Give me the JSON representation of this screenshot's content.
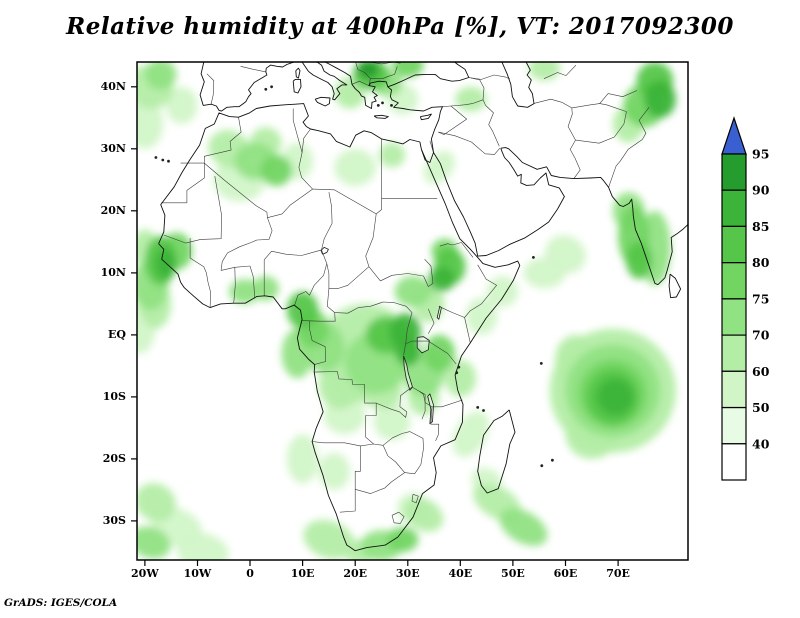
{
  "title": "Relative humidity at 400hPa [%], VT: 2017092300",
  "attribution": "GrADS: IGES/COLA",
  "chart_data": {
    "type": "heatmap",
    "variable": "Relative humidity",
    "pressure_level": "400hPa",
    "units": "%",
    "valid_time": "2017092300",
    "map_extent": {
      "lon_min": -21.5,
      "lon_max": 83.3,
      "lat_min": -36.3,
      "lat_max": 44
    },
    "lat_ticks": [
      {
        "label": "40N",
        "value": 40
      },
      {
        "label": "30N",
        "value": 30
      },
      {
        "label": "20N",
        "value": 20
      },
      {
        "label": "10N",
        "value": 10
      },
      {
        "label": "EQ",
        "value": 0
      },
      {
        "label": "10S",
        "value": -10
      },
      {
        "label": "20S",
        "value": -20
      },
      {
        "label": "30S",
        "value": -30
      }
    ],
    "lon_ticks": [
      {
        "label": "20W",
        "value": -20
      },
      {
        "label": "10W",
        "value": -10
      },
      {
        "label": "0",
        "value": 0
      },
      {
        "label": "10E",
        "value": 10
      },
      {
        "label": "20E",
        "value": 20
      },
      {
        "label": "30E",
        "value": 30
      },
      {
        "label": "40E",
        "value": 40
      },
      {
        "label": "50E",
        "value": 50
      },
      {
        "label": "60E",
        "value": 60
      },
      {
        "label": "70E",
        "value": 70
      }
    ],
    "colorbar": {
      "labels": [
        "95",
        "90",
        "85",
        "80",
        "75",
        "70",
        "60",
        "50",
        "40"
      ],
      "segment_colors": [
        "#259d2e",
        "#3cb439",
        "#55c649",
        "#72d562",
        "#91e283",
        "#b4eda6",
        "#d2f5c8",
        "#e8fbe4",
        "#ffffff"
      ],
      "arrow_color": "#3a5fd0"
    },
    "palette": {
      "40": "#e8fbe4",
      "50": "#d2f5c8",
      "60": "#b4eda6",
      "70": "#91e283",
      "75": "#72d562",
      "80": "#55c649",
      "85": "#3cb439",
      "90": "#259d2e"
    },
    "regions": [
      [
        -19,
        40,
        4.5,
        3.5,
        20,
        60
      ],
      [
        -17,
        42,
        3,
        2.5,
        0,
        70
      ],
      [
        -20,
        34,
        3.5,
        4,
        0,
        50
      ],
      [
        -13,
        37,
        3,
        3,
        0,
        50
      ],
      [
        23,
        42,
        3.5,
        2.5,
        0,
        80
      ],
      [
        22.5,
        42.8,
        2,
        1.5,
        0,
        90
      ],
      [
        26,
        40.5,
        3,
        2,
        0,
        70
      ],
      [
        19,
        39,
        3,
        2.5,
        30,
        60
      ],
      [
        29,
        38,
        3,
        2.5,
        0,
        50
      ],
      [
        30,
        43.5,
        3,
        2,
        0,
        75
      ],
      [
        -4,
        30,
        4,
        3,
        20,
        60
      ],
      [
        1,
        28,
        4,
        3,
        0,
        70
      ],
      [
        5,
        26.5,
        3,
        2.5,
        0,
        75
      ],
      [
        3,
        31,
        3,
        2.5,
        0,
        60
      ],
      [
        -2,
        25,
        5,
        3.5,
        0,
        50
      ],
      [
        9,
        28,
        3,
        3,
        0,
        50
      ],
      [
        20,
        27,
        4,
        3,
        0,
        50
      ],
      [
        27,
        29,
        2.5,
        2,
        0,
        60
      ],
      [
        36,
        27,
        2.5,
        3,
        40,
        50
      ],
      [
        -17,
        12,
        3,
        4,
        0,
        80
      ],
      [
        -16,
        11.5,
        2,
        2.5,
        0,
        85
      ],
      [
        -19,
        8,
        3.5,
        4,
        0,
        70
      ],
      [
        -14,
        13.5,
        3,
        3,
        0,
        75
      ],
      [
        -20,
        14,
        2.5,
        3,
        0,
        60
      ],
      [
        -18,
        5,
        3,
        4,
        0,
        60
      ],
      [
        -21,
        1,
        3,
        4,
        0,
        50
      ],
      [
        -1,
        7,
        3,
        2,
        0,
        70
      ],
      [
        3,
        7.5,
        2.5,
        2,
        0,
        70
      ],
      [
        10,
        4,
        3,
        3,
        0,
        80
      ],
      [
        12,
        1,
        3,
        3,
        0,
        75
      ],
      [
        9,
        -3,
        3,
        4,
        0,
        70
      ],
      [
        14,
        -2,
        4,
        4,
        0,
        70
      ],
      [
        22,
        -2,
        9,
        7,
        0,
        60
      ],
      [
        24,
        -4.5,
        6,
        5,
        0,
        70
      ],
      [
        26,
        0,
        4,
        3,
        0,
        80
      ],
      [
        29.5,
        0.5,
        3,
        3,
        0,
        85
      ],
      [
        30,
        -2.5,
        2.5,
        2.5,
        0,
        85
      ],
      [
        20,
        -7,
        5,
        4,
        0,
        60
      ],
      [
        17,
        -8,
        4,
        4,
        0,
        60
      ],
      [
        25,
        -9,
        4,
        3,
        0,
        60
      ],
      [
        36,
        -3,
        3,
        3,
        0,
        75
      ],
      [
        33,
        -6,
        4,
        4,
        0,
        70
      ],
      [
        33,
        -10,
        3,
        3,
        0,
        60
      ],
      [
        40,
        -7,
        3,
        3,
        0,
        60
      ],
      [
        38,
        11,
        3,
        3,
        0,
        80
      ],
      [
        36.5,
        9,
        2.5,
        2,
        0,
        85
      ],
      [
        37,
        13.5,
        2.5,
        2,
        0,
        75
      ],
      [
        31,
        7,
        3.5,
        2.5,
        0,
        70
      ],
      [
        34,
        5,
        3,
        3,
        0,
        60
      ],
      [
        42,
        38,
        3,
        2,
        0,
        60
      ],
      [
        44,
        3,
        3,
        3,
        0,
        50
      ],
      [
        48,
        7,
        3,
        2.5,
        0,
        50
      ],
      [
        42,
        -16,
        3,
        4,
        30,
        50
      ],
      [
        69,
        -9,
        12,
        10,
        0,
        60
      ],
      [
        69,
        -9,
        9,
        7.5,
        0,
        70
      ],
      [
        69,
        -9.5,
        6.5,
        5.5,
        0,
        75
      ],
      [
        69,
        -10,
        5,
        4.5,
        0,
        80
      ],
      [
        69.5,
        -10,
        3.5,
        3,
        0,
        85
      ],
      [
        65,
        -16,
        5,
        4,
        0,
        60
      ],
      [
        62,
        -4,
        4,
        4,
        0,
        60
      ],
      [
        73,
        16,
        3,
        5,
        0,
        75
      ],
      [
        74,
        12,
        2.5,
        3,
        0,
        80
      ],
      [
        72,
        20,
        3,
        3,
        0,
        70
      ],
      [
        77,
        14,
        3,
        6,
        0,
        70
      ],
      [
        75,
        37,
        4,
        3.5,
        0,
        75
      ],
      [
        77,
        41,
        3.5,
        3,
        0,
        80
      ],
      [
        72,
        34,
        3,
        3,
        0,
        60
      ],
      [
        78,
        38,
        3,
        3,
        0,
        85
      ],
      [
        60,
        13,
        4,
        3,
        30,
        50
      ],
      [
        56,
        10,
        4,
        2.5,
        0,
        50
      ],
      [
        56,
        43,
        3,
        2,
        0,
        60
      ],
      [
        -18,
        -27,
        4,
        3,
        30,
        60
      ],
      [
        -14,
        -31,
        5,
        3,
        20,
        50
      ],
      [
        -19,
        -33.5,
        4,
        2.5,
        20,
        70
      ],
      [
        -9,
        -35,
        5,
        3,
        10,
        50
      ],
      [
        10,
        -20,
        3,
        4,
        0,
        50
      ],
      [
        16,
        -22,
        3,
        3,
        0,
        50
      ],
      [
        18,
        -13,
        4,
        3,
        0,
        50
      ],
      [
        27,
        -14,
        3.5,
        3,
        0,
        50
      ],
      [
        15,
        -33,
        5,
        3,
        20,
        60
      ],
      [
        25,
        -34,
        4,
        2.5,
        0,
        70
      ],
      [
        29,
        -33,
        3,
        2,
        0,
        75
      ],
      [
        21,
        -35,
        3,
        2,
        0,
        60
      ],
      [
        31,
        -28,
        3,
        2.5,
        0,
        50
      ],
      [
        33,
        -29,
        4,
        2.5,
        30,
        60
      ],
      [
        47,
        -27,
        5,
        2.5,
        30,
        60
      ],
      [
        52,
        -31,
        5,
        2.5,
        30,
        70
      ],
      [
        45,
        -23.5,
        3,
        2,
        20,
        50
      ]
    ]
  }
}
